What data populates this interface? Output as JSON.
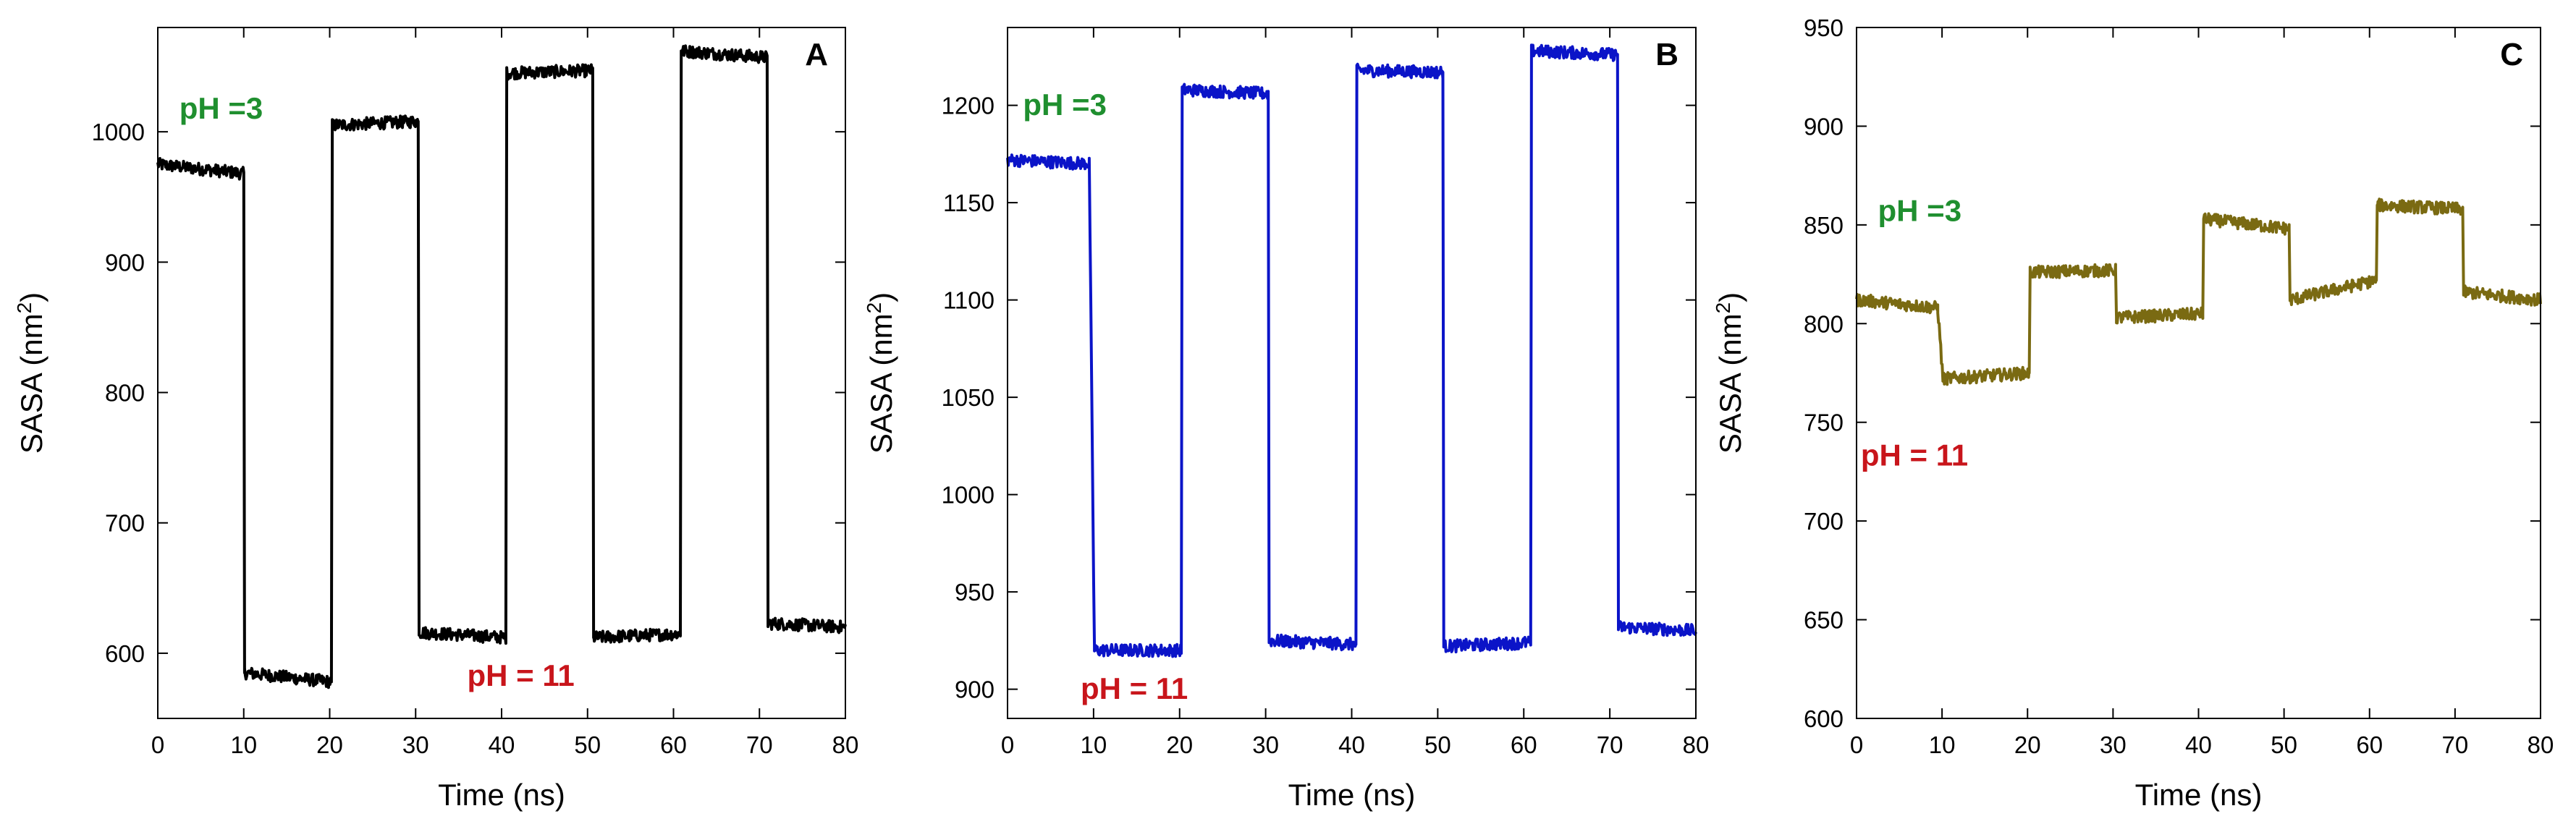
{
  "chart_data": [
    {
      "type": "line",
      "panel_label": "A",
      "title": "",
      "xlabel": "Time (ns)",
      "ylabel": "SASA (nm²)",
      "ylabel_main": "SASA (nm",
      "ylabel_sup": "2",
      "ylabel_tail": ")",
      "xlim": [
        0,
        80
      ],
      "ylim": [
        550,
        1080
      ],
      "xticks": [
        0,
        10,
        20,
        30,
        40,
        50,
        60,
        70,
        80
      ],
      "yticks": [
        600,
        700,
        800,
        900,
        1000
      ],
      "series": [
        {
          "name": "SASA",
          "color": "#000000",
          "x": [
            0,
            10,
            10.1,
            20.2,
            20.3,
            30.3,
            30.4,
            40.5,
            40.6,
            50.6,
            50.7,
            60.8,
            60.9,
            70.9,
            71.0,
            80
          ],
          "values": [
            975,
            968,
            585,
            578,
            1005,
            1008,
            616,
            612,
            1045,
            1047,
            612,
            615,
            1062,
            1057,
            623,
            620
          ]
        }
      ],
      "annotations": [
        {
          "text": "pH =3",
          "x": 2.5,
          "y": 1010,
          "color": "#1f8f2f"
        },
        {
          "text": "pH = 11",
          "x": 36,
          "y": 575,
          "color": "#c8151b"
        }
      ]
    },
    {
      "type": "line",
      "panel_label": "B",
      "title": "",
      "xlabel": "Time (ns)",
      "ylabel": "SASA (nm²)",
      "ylabel_main": "SASA (nm",
      "ylabel_sup": "2",
      "ylabel_tail": ")",
      "xlim": [
        0,
        80
      ],
      "ylim": [
        885,
        1240
      ],
      "xticks": [
        0,
        10,
        20,
        30,
        40,
        50,
        60,
        70,
        80
      ],
      "yticks": [
        900,
        950,
        1000,
        1050,
        1100,
        1150,
        1200
      ],
      "series": [
        {
          "name": "SASA",
          "color": "#0b14c8",
          "x": [
            0,
            9.5,
            10.1,
            20.2,
            20.3,
            30.3,
            30.4,
            40.5,
            40.6,
            50.6,
            50.7,
            60.8,
            60.9,
            70.9,
            71.0,
            80
          ],
          "values": [
            1172,
            1170,
            920,
            920,
            1208,
            1206,
            925,
            923,
            1218,
            1217,
            922,
            924,
            1228,
            1226,
            932,
            930
          ]
        }
      ],
      "annotations": [
        {
          "text": "pH =3",
          "x": 1.8,
          "y": 1195,
          "color": "#1f8f2f"
        },
        {
          "text": "pH = 11",
          "x": 8.5,
          "y": 895,
          "color": "#c8151b"
        }
      ]
    },
    {
      "type": "line",
      "panel_label": "C",
      "title": "",
      "xlabel": "Time (ns)",
      "ylabel": "SASA (nm²)",
      "ylabel_main": "SASA (nm",
      "ylabel_sup": "2",
      "ylabel_tail": ")",
      "xlim": [
        0,
        80
      ],
      "ylim": [
        600,
        950
      ],
      "xticks": [
        0,
        10,
        20,
        30,
        40,
        50,
        60,
        70,
        80
      ],
      "yticks": [
        600,
        650,
        700,
        750,
        800,
        850,
        900,
        950
      ],
      "series": [
        {
          "name": "SASA",
          "color": "#7a6a12",
          "x": [
            0,
            9.5,
            10.1,
            20.2,
            20.3,
            30.3,
            30.4,
            40.5,
            40.6,
            50.6,
            50.7,
            60.8,
            60.9,
            70.9,
            71.0,
            80
          ],
          "values": [
            812,
            808,
            772,
            775,
            826,
            827,
            803,
            805,
            853,
            848,
            812,
            822,
            860,
            858,
            816,
            812
          ]
        }
      ],
      "annotations": [
        {
          "text": "pH =3",
          "x": 2.5,
          "y": 852,
          "color": "#1f8f2f"
        },
        {
          "text": "pH = 11",
          "x": 0.5,
          "y": 728,
          "color": "#c8151b"
        }
      ]
    }
  ]
}
